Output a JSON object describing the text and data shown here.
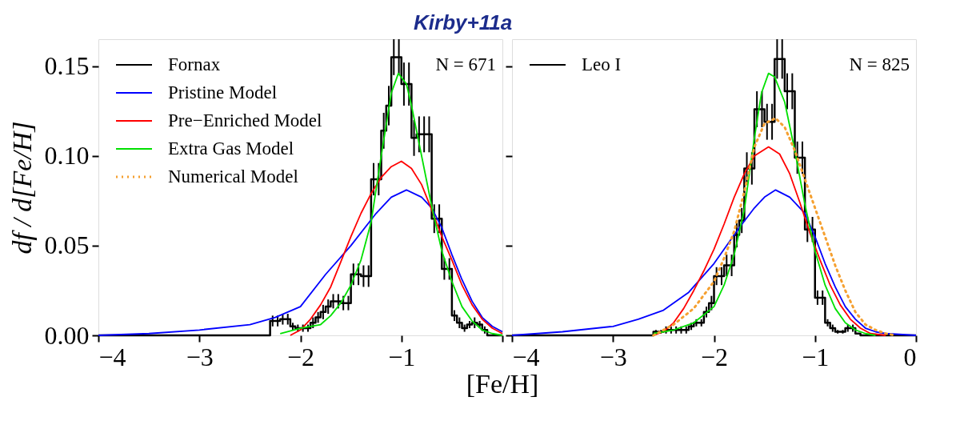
{
  "chart_data": [
    {
      "type": "line",
      "title": "Kirby+11a",
      "xlabel": "[Fe/H]",
      "ylabel": "df / d[Fe/H]",
      "xlim": [
        -4,
        0
      ],
      "ylim": [
        0,
        0.165
      ],
      "xticks": [
        {
          "value": -4,
          "label": "−4"
        },
        {
          "value": -3,
          "label": "−3"
        },
        {
          "value": -2,
          "label": "−2"
        },
        {
          "value": -1,
          "label": "−1"
        },
        {
          "value": 0,
          "label": null
        }
      ],
      "yticks": [
        {
          "value": 0,
          "label": "0.00"
        },
        {
          "value": 0.05,
          "label": "0.05"
        },
        {
          "value": 0.1,
          "label": "0.10"
        },
        {
          "value": 0.15,
          "label": "0.15"
        }
      ],
      "legend": "top left",
      "annotations": [
        "N = 671"
      ],
      "series": [
        {
          "type": "step",
          "name": "Fornax",
          "color": "#000000",
          "x": [
            -4,
            -2.325,
            -2.275,
            -2.225,
            -2.175,
            -2.125,
            -2.075,
            -2.025,
            -1.975,
            -1.925,
            -1.875,
            -1.825,
            -1.775,
            -1.725,
            -1.675,
            -1.625,
            -1.575,
            -1.525,
            -1.475,
            -1.425,
            -1.375,
            -1.325,
            -1.275,
            -1.225,
            -1.175,
            -1.125,
            -1.075,
            -1.025,
            -0.975,
            -0.925,
            -0.875,
            -0.825,
            -0.775,
            -0.725,
            -0.675,
            -0.625,
            -0.575,
            -0.525,
            -0.475,
            -0.425,
            -0.375,
            -0.325,
            -0.275,
            -0.225,
            -0.175,
            -0.125,
            0
          ],
          "values": [
            0,
            0,
            0.008,
            0.008,
            0.009,
            0.009,
            0.005,
            0.004,
            0.004,
            0.004,
            0.007,
            0.01,
            0.013,
            0.016,
            0.019,
            0.019,
            0.018,
            0.018,
            0.034,
            0.034,
            0.033,
            0.033,
            0.087,
            0.087,
            0.114,
            0.128,
            0.155,
            0.155,
            0.14,
            0.14,
            0.11,
            0.112,
            0.112,
            0.112,
            0.065,
            0.065,
            0.037,
            0.037,
            0.011,
            0.007,
            0.004,
            0.006,
            0.007,
            0.006,
            0.003,
            0,
            0
          ],
          "errors": [
            null,
            null,
            0.003,
            0.003,
            0.003,
            0.003,
            0.002,
            0.002,
            0.002,
            0.002,
            0.003,
            0.003,
            0.004,
            0.004,
            0.004,
            0.004,
            0.004,
            0.004,
            0.006,
            0.006,
            0.006,
            0.006,
            0.009,
            0.009,
            0.01,
            0.011,
            0.01,
            0.01,
            0.012,
            0.012,
            0.01,
            0.01,
            0.01,
            0.01,
            0.008,
            0.008,
            0.006,
            0.006,
            0.003,
            0.003,
            0.002,
            0.002,
            0.003,
            0.002,
            0.002,
            null,
            null
          ]
        },
        {
          "type": "line",
          "name": "Pristine Model",
          "color": "#0000ff",
          "line_style": "solid",
          "x": [
            -4,
            -3.5,
            -3.0,
            -2.5,
            -2.25,
            -2.0,
            -1.75,
            -1.5,
            -1.25,
            -1.1,
            -0.95,
            -0.8,
            -0.7,
            -0.6,
            -0.5,
            -0.4,
            -0.3,
            -0.2,
            -0.1,
            0
          ],
          "values": [
            0.0,
            0.001,
            0.003,
            0.006,
            0.01,
            0.016,
            0.034,
            0.05,
            0.068,
            0.077,
            0.081,
            0.077,
            0.071,
            0.06,
            0.045,
            0.031,
            0.019,
            0.01,
            0.005,
            0.002
          ]
        },
        {
          "type": "line",
          "name": "Pre−Enriched Model",
          "color": "#ff0000",
          "line_style": "solid",
          "x": [
            -2.1,
            -2.0,
            -1.9,
            -1.8,
            -1.7,
            -1.6,
            -1.5,
            -1.4,
            -1.3,
            -1.2,
            -1.1,
            -1.0,
            -0.9,
            -0.8,
            -0.7,
            -0.6,
            -0.5,
            -0.4,
            -0.3,
            -0.2,
            -0.1,
            0
          ],
          "values": [
            0,
            0.003,
            0.009,
            0.017,
            0.027,
            0.041,
            0.055,
            0.068,
            0.079,
            0.088,
            0.094,
            0.097,
            0.093,
            0.084,
            0.07,
            0.055,
            0.042,
            0.028,
            0.017,
            0.009,
            0.004,
            0.001
          ]
        },
        {
          "type": "line",
          "name": "Extra Gas Model",
          "color": "#00e000",
          "line_style": "solid",
          "x": [
            -2.2,
            -2.0,
            -1.8,
            -1.7,
            -1.6,
            -1.5,
            -1.4,
            -1.3,
            -1.2,
            -1.1,
            -1.03,
            -0.95,
            -0.9,
            -0.8,
            -0.7,
            -0.6,
            -0.5,
            -0.4,
            -0.3,
            -0.2,
            -0.1,
            0
          ],
          "values": [
            0.001,
            0.004,
            0.006,
            0.011,
            0.018,
            0.028,
            0.042,
            0.063,
            0.1,
            0.135,
            0.146,
            0.14,
            0.128,
            0.1,
            0.072,
            0.047,
            0.03,
            0.016,
            0.008,
            0.003,
            0.001,
            0
          ]
        },
        {
          "type": "line",
          "name": "Numerical Model",
          "color": "#f5a030",
          "line_style": "dotted"
        }
      ]
    },
    {
      "type": "line",
      "xlim": [
        -4,
        0
      ],
      "ylim": [
        0,
        0.165
      ],
      "tick_labels": "x",
      "xticks": [
        {
          "value": -4,
          "label": "−4"
        },
        {
          "value": -3,
          "label": "−3"
        },
        {
          "value": -2,
          "label": "−2"
        },
        {
          "value": -1,
          "label": "−1"
        },
        0
      ],
      "yticks": [
        0,
        0.05,
        0.1,
        0.15
      ],
      "legend": "top left",
      "annotations": [
        "N = 825"
      ],
      "series": [
        {
          "type": "step",
          "name": "Leo I",
          "color": "#000000",
          "x": [
            -4,
            -2.625,
            -2.575,
            -2.525,
            -2.475,
            -2.425,
            -2.375,
            -2.325,
            -2.275,
            -2.225,
            -2.175,
            -2.125,
            -2.075,
            -2.025,
            -1.975,
            -1.925,
            -1.875,
            -1.825,
            -1.775,
            -1.725,
            -1.675,
            -1.625,
            -1.575,
            -1.525,
            -1.475,
            -1.425,
            -1.375,
            -1.325,
            -1.275,
            -1.225,
            -1.175,
            -1.125,
            -1.075,
            -1.025,
            -0.975,
            -0.925,
            -0.875,
            -0.825,
            -0.775,
            -0.725,
            -0.675,
            -0.625,
            -0.575,
            -0.525,
            0
          ],
          "values": [
            0,
            0,
            0.002,
            0.002,
            0.003,
            0.003,
            0.003,
            0.003,
            0.003,
            0.005,
            0.007,
            0.007,
            0.013,
            0.018,
            0.033,
            0.033,
            0.039,
            0.039,
            0.056,
            0.064,
            0.093,
            0.093,
            0.126,
            0.126,
            0.119,
            0.119,
            0.154,
            0.154,
            0.136,
            0.136,
            0.099,
            0.099,
            0.059,
            0.059,
            0.021,
            0.021,
            0.007,
            0.004,
            0.002,
            0.002,
            0.004,
            0.004,
            0.001,
            0,
            0
          ],
          "errors": [
            null,
            null,
            0.001,
            0.001,
            0.002,
            0.002,
            0.002,
            0.002,
            0.002,
            0.002,
            0.002,
            0.002,
            0.003,
            0.004,
            0.005,
            0.005,
            0.006,
            0.006,
            0.007,
            0.007,
            0.009,
            0.009,
            0.01,
            0.01,
            0.01,
            0.01,
            0.011,
            0.011,
            0.01,
            0.01,
            0.009,
            0.009,
            0.007,
            0.007,
            0.004,
            0.004,
            0.002,
            0.002,
            0.001,
            0.001,
            0.002,
            0.002,
            null,
            null,
            null
          ]
        },
        {
          "type": "line",
          "color": "#0000ff",
          "line_style": "solid",
          "x": [
            -4,
            -3.5,
            -3.0,
            -2.75,
            -2.5,
            -2.25,
            -2.0,
            -1.75,
            -1.6,
            -1.5,
            -1.39,
            -1.25,
            -1.1,
            -1.0,
            -0.9,
            -0.8,
            -0.7,
            -0.6,
            -0.5,
            -0.4,
            -0.3,
            0
          ],
          "values": [
            0.0,
            0.002,
            0.005,
            0.009,
            0.014,
            0.024,
            0.04,
            0.06,
            0.071,
            0.077,
            0.081,
            0.077,
            0.068,
            0.055,
            0.04,
            0.027,
            0.016,
            0.009,
            0.004,
            0.002,
            0.001,
            0
          ]
        },
        {
          "type": "line",
          "color": "#ff0000",
          "line_style": "solid",
          "x": [
            -2.6,
            -2.5,
            -2.4,
            -2.3,
            -2.2,
            -2.1,
            -2.0,
            -1.9,
            -1.8,
            -1.7,
            -1.6,
            -1.46,
            -1.35,
            -1.25,
            -1.15,
            -1.05,
            -0.95,
            -0.85,
            -0.75,
            -0.65,
            -0.55,
            -0.45,
            -0.3
          ],
          "values": [
            0,
            0.002,
            0.007,
            0.015,
            0.025,
            0.036,
            0.048,
            0.062,
            0.077,
            0.09,
            0.1,
            0.105,
            0.101,
            0.09,
            0.074,
            0.057,
            0.042,
            0.028,
            0.017,
            0.009,
            0.004,
            0.001,
            0
          ]
        },
        {
          "type": "line",
          "color": "#00e000",
          "line_style": "solid",
          "x": [
            -2.6,
            -2.4,
            -2.2,
            -2.0,
            -1.9,
            -1.8,
            -1.7,
            -1.6,
            -1.53,
            -1.46,
            -1.4,
            -1.3,
            -1.2,
            -1.1,
            -1.0,
            -0.9,
            -0.8,
            -0.7,
            -0.6,
            -0.5,
            -0.4
          ],
          "values": [
            0.001,
            0.003,
            0.007,
            0.016,
            0.028,
            0.045,
            0.07,
            0.11,
            0.135,
            0.146,
            0.144,
            0.13,
            0.103,
            0.073,
            0.047,
            0.028,
            0.015,
            0.007,
            0.003,
            0.001,
            0
          ]
        },
        {
          "type": "line",
          "color": "#f5a030",
          "line_style": "dotted",
          "x": [
            -2.6,
            -2.4,
            -2.2,
            -2.0,
            -1.9,
            -1.8,
            -1.7,
            -1.6,
            -1.5,
            -1.39,
            -1.3,
            -1.2,
            -1.1,
            -1.0,
            -0.9,
            -0.8,
            -0.7,
            -0.6,
            -0.5,
            -0.4,
            -0.3,
            -0.2
          ],
          "values": [
            0,
            0.006,
            0.015,
            0.03,
            0.043,
            0.058,
            0.08,
            0.105,
            0.118,
            0.121,
            0.116,
            0.103,
            0.087,
            0.071,
            0.055,
            0.039,
            0.025,
            0.013,
            0.006,
            0.003,
            0.001,
            0
          ]
        }
      ]
    }
  ]
}
